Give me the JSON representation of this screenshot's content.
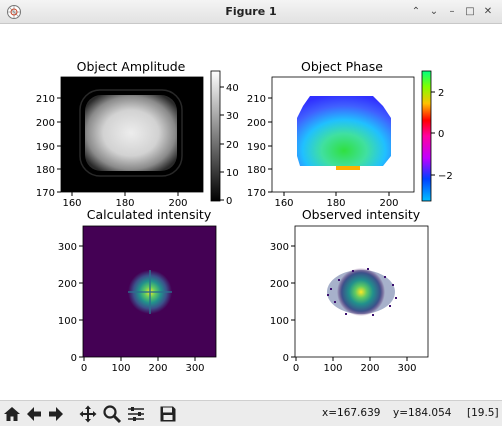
{
  "window": {
    "title": "Figure 1"
  },
  "window_controls": {
    "collapse": "⌃",
    "restore": "⌄",
    "minimize": "–",
    "maximize": "□",
    "close": "✕"
  },
  "plots": {
    "amplitude": {
      "title": "Object Amplitude",
      "xticks": [
        "160",
        "180",
        "200"
      ],
      "yticks": [
        "210",
        "200",
        "190",
        "180",
        "170"
      ],
      "cbar_ticks": [
        "40",
        "30",
        "20",
        "10",
        "0"
      ]
    },
    "phase": {
      "title": "Object Phase",
      "xticks": [
        "160",
        "180",
        "200"
      ],
      "yticks": [
        "210",
        "200",
        "190",
        "180",
        "170"
      ],
      "cbar_ticks": [
        "2",
        "0",
        "−2"
      ]
    },
    "calc": {
      "title": "Calculated intensity",
      "xticks": [
        "0",
        "100",
        "200",
        "300"
      ],
      "yticks": [
        "300",
        "200",
        "100",
        "0"
      ]
    },
    "obs": {
      "title": "Observed intensity",
      "xticks": [
        "0",
        "100",
        "200",
        "300"
      ],
      "yticks": [
        "300",
        "200",
        "100",
        "0"
      ]
    }
  },
  "toolbar": {
    "icons": [
      "home-icon",
      "back-arrow-icon",
      "forward-arrow-icon",
      "pan-icon",
      "zoom-icon",
      "configure-subplots-icon",
      "save-icon"
    ],
    "x_readout": "x=167.639",
    "y_readout": "y=184.054",
    "value_readout": "[19.5]"
  }
}
